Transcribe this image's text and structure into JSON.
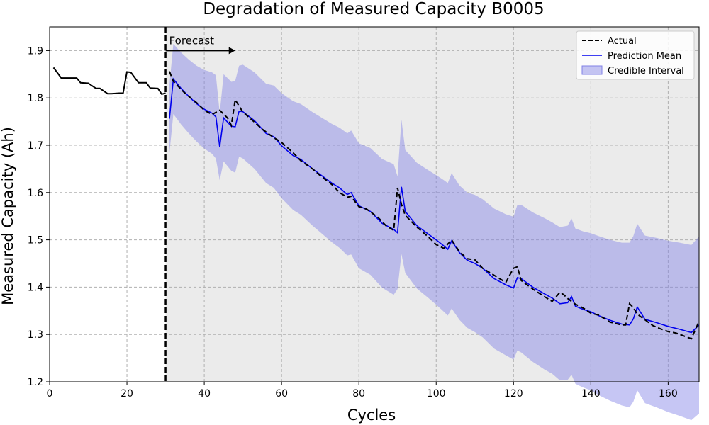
{
  "chart_data": {
    "type": "line",
    "title": "Degradation of Measured Capacity B0005",
    "xlabel": "Cycles",
    "ylabel": "Measured Capacity (Ah)",
    "xlim": [
      0,
      168
    ],
    "ylim": [
      1.2,
      1.95
    ],
    "xticks": [
      0,
      20,
      40,
      60,
      80,
      100,
      120,
      140,
      160
    ],
    "yticks": [
      1.2,
      1.3,
      1.4,
      1.5,
      1.6,
      1.7,
      1.8,
      1.9
    ],
    "grid": true,
    "legend_position": "top-right",
    "forecast_start": 30,
    "annotation": "Forecast",
    "annotation_arrow_end": 48,
    "colors": {
      "history": "#000000",
      "actual": "#000000",
      "prediction": "#0000ee",
      "interval": "#8080e6",
      "forecast_region": "#ebebeb"
    },
    "legend": [
      "Actual",
      "Prediction Mean",
      "Credible Interval"
    ],
    "history": {
      "x": [
        1,
        3,
        5,
        7,
        8,
        10,
        12,
        13,
        15,
        16,
        18,
        19,
        20,
        21,
        23,
        25,
        26,
        28,
        29,
        30
      ],
      "y": [
        1.864,
        1.842,
        1.842,
        1.842,
        1.832,
        1.831,
        1.82,
        1.82,
        1.809,
        1.809,
        1.81,
        1.81,
        1.855,
        1.854,
        1.832,
        1.832,
        1.821,
        1.82,
        1.808,
        1.81
      ]
    },
    "series": [
      {
        "name": "Actual",
        "style": "dashed",
        "x": [
          31,
          32,
          35,
          38,
          40,
          42,
          44,
          46,
          47,
          48,
          50,
          52,
          55,
          58,
          60,
          63,
          65,
          68,
          70,
          73,
          75,
          77,
          78,
          80,
          82,
          85,
          87,
          89,
          90,
          91,
          92,
          95,
          98,
          100,
          102,
          104,
          106,
          108,
          110,
          112,
          115,
          118,
          120,
          121,
          122,
          125,
          128,
          130,
          132,
          133,
          134,
          136,
          138,
          140,
          142,
          145,
          148,
          149,
          150,
          151,
          152,
          154,
          156,
          158,
          160,
          162,
          164,
          166,
          168
        ],
        "y": [
          1.856,
          1.835,
          1.81,
          1.79,
          1.774,
          1.765,
          1.774,
          1.758,
          1.742,
          1.796,
          1.77,
          1.756,
          1.734,
          1.716,
          1.706,
          1.684,
          1.667,
          1.65,
          1.636,
          1.617,
          1.6,
          1.59,
          1.592,
          1.57,
          1.565,
          1.547,
          1.53,
          1.52,
          1.61,
          1.575,
          1.552,
          1.527,
          1.506,
          1.49,
          1.482,
          1.5,
          1.475,
          1.46,
          1.458,
          1.44,
          1.425,
          1.41,
          1.44,
          1.443,
          1.414,
          1.396,
          1.38,
          1.37,
          1.389,
          1.384,
          1.376,
          1.364,
          1.356,
          1.345,
          1.341,
          1.326,
          1.32,
          1.32,
          1.365,
          1.357,
          1.343,
          1.331,
          1.319,
          1.312,
          1.306,
          1.303,
          1.297,
          1.291,
          1.328
        ]
      },
      {
        "name": "Prediction Mean",
        "style": "solid",
        "x": [
          31,
          32,
          34,
          36,
          38,
          40,
          42,
          43,
          44,
          45,
          47,
          48,
          49,
          50,
          53,
          56,
          58,
          60,
          63,
          65,
          68,
          70,
          73,
          75,
          77,
          78,
          80,
          83,
          86,
          89,
          90,
          91,
          92,
          95,
          98,
          100,
          102,
          103,
          104,
          106,
          108,
          110,
          112,
          115,
          118,
          120,
          121,
          122,
          125,
          128,
          130,
          132,
          134,
          135,
          136,
          138,
          140,
          142,
          145,
          148,
          150,
          151,
          152,
          154,
          157,
          160,
          163,
          166,
          168
        ],
        "y": [
          1.756,
          1.84,
          1.82,
          1.803,
          1.788,
          1.776,
          1.768,
          1.76,
          1.697,
          1.758,
          1.74,
          1.739,
          1.772,
          1.771,
          1.752,
          1.725,
          1.718,
          1.699,
          1.678,
          1.67,
          1.65,
          1.638,
          1.62,
          1.61,
          1.596,
          1.6,
          1.572,
          1.56,
          1.535,
          1.522,
          1.515,
          1.612,
          1.56,
          1.53,
          1.512,
          1.5,
          1.487,
          1.48,
          1.498,
          1.473,
          1.457,
          1.45,
          1.44,
          1.418,
          1.405,
          1.398,
          1.42,
          1.418,
          1.4,
          1.386,
          1.377,
          1.365,
          1.367,
          1.38,
          1.36,
          1.353,
          1.348,
          1.34,
          1.33,
          1.322,
          1.32,
          1.333,
          1.358,
          1.332,
          1.325,
          1.317,
          1.311,
          1.304,
          1.32
        ]
      },
      {
        "name": "Credible Interval",
        "style": "band",
        "x": [
          31,
          32,
          34,
          36,
          38,
          40,
          42,
          43,
          44,
          45,
          47,
          48,
          49,
          50,
          53,
          56,
          58,
          60,
          63,
          65,
          68,
          70,
          73,
          75,
          77,
          78,
          80,
          83,
          86,
          89,
          90,
          91,
          92,
          95,
          98,
          100,
          102,
          103,
          104,
          106,
          108,
          110,
          112,
          115,
          118,
          120,
          121,
          122,
          125,
          128,
          130,
          132,
          134,
          135,
          136,
          138,
          140,
          142,
          145,
          148,
          150,
          151,
          152,
          154,
          157,
          160,
          163,
          166,
          168
        ],
        "lower": [
          1.684,
          1.766,
          1.744,
          1.725,
          1.708,
          1.693,
          1.682,
          1.672,
          1.626,
          1.666,
          1.646,
          1.642,
          1.676,
          1.672,
          1.65,
          1.62,
          1.61,
          1.588,
          1.563,
          1.553,
          1.53,
          1.516,
          1.495,
          1.483,
          1.467,
          1.469,
          1.44,
          1.426,
          1.399,
          1.384,
          1.396,
          1.47,
          1.43,
          1.397,
          1.377,
          1.363,
          1.348,
          1.34,
          1.355,
          1.331,
          1.314,
          1.305,
          1.294,
          1.27,
          1.256,
          1.247,
          1.266,
          1.262,
          1.242,
          1.226,
          1.217,
          1.203,
          1.204,
          1.215,
          1.196,
          1.188,
          1.182,
          1.172,
          1.16,
          1.15,
          1.146,
          1.158,
          1.182,
          1.155,
          1.146,
          1.136,
          1.128,
          1.119,
          1.133
        ],
        "upper": [
          1.828,
          1.914,
          1.896,
          1.881,
          1.868,
          1.859,
          1.854,
          1.848,
          1.768,
          1.85,
          1.834,
          1.836,
          1.868,
          1.87,
          1.854,
          1.83,
          1.826,
          1.81,
          1.793,
          1.787,
          1.77,
          1.76,
          1.745,
          1.737,
          1.725,
          1.731,
          1.704,
          1.694,
          1.671,
          1.66,
          1.634,
          1.754,
          1.69,
          1.663,
          1.647,
          1.637,
          1.626,
          1.62,
          1.641,
          1.615,
          1.6,
          1.595,
          1.586,
          1.566,
          1.554,
          1.549,
          1.574,
          1.574,
          1.558,
          1.546,
          1.537,
          1.527,
          1.53,
          1.545,
          1.524,
          1.518,
          1.514,
          1.508,
          1.5,
          1.494,
          1.494,
          1.508,
          1.534,
          1.509,
          1.504,
          1.498,
          1.494,
          1.489,
          1.507
        ]
      }
    ]
  }
}
